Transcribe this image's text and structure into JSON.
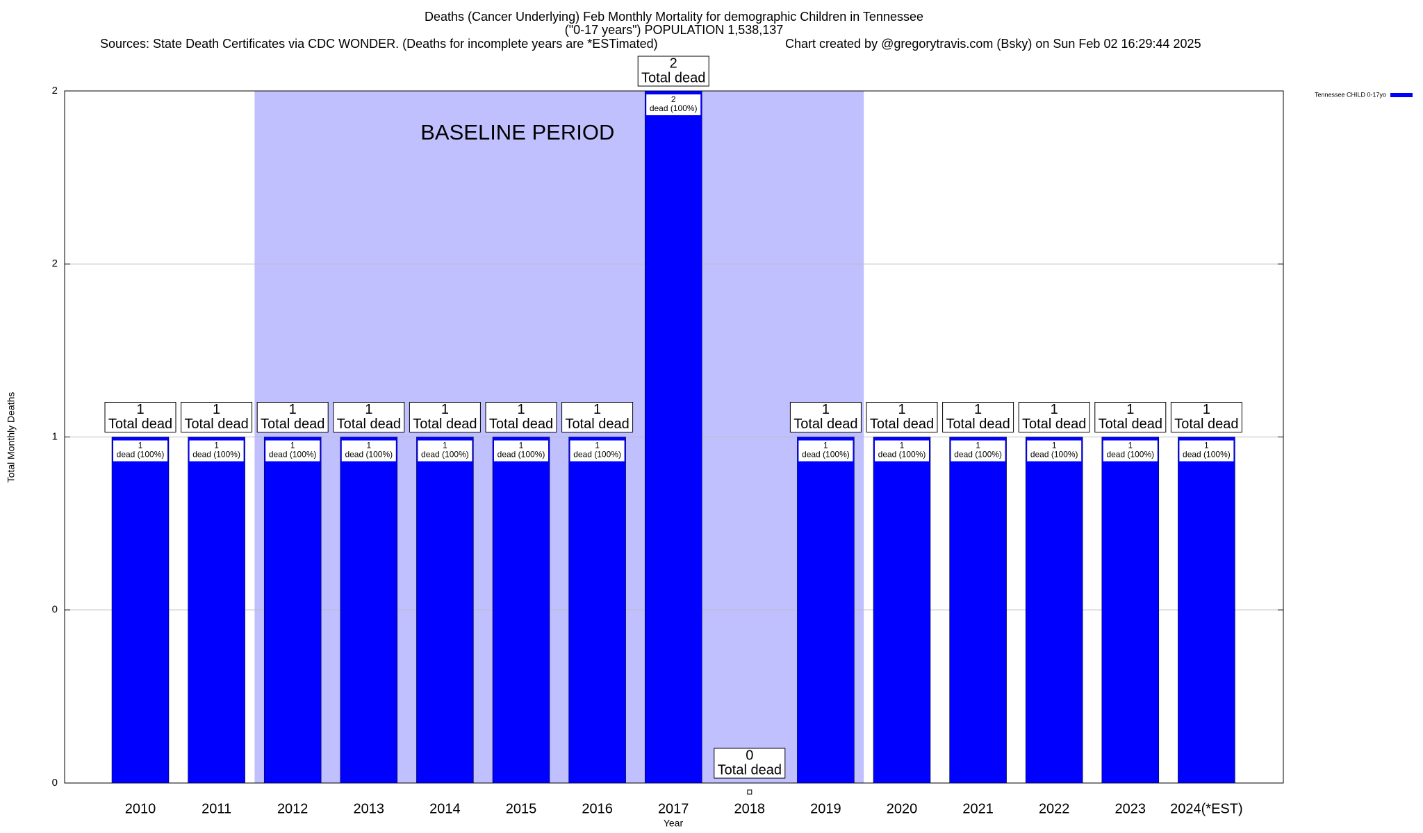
{
  "chart_data": {
    "type": "bar",
    "title": "Deaths (Cancer Underlying) Feb Monthly Mortality for demographic Children in Tennessee",
    "subtitle": "(\"0-17 years\") POPULATION 1,538,137",
    "sources": "Sources: State Death Certificates via CDC WONDER. (Deaths for incomplete years are *ESTimated)",
    "credit": "Chart created by @gregorytravis.com (Bsky) on Sun Feb 02 16:29:44 2025",
    "x_label": "Year",
    "y_label": "Total Monthly Deaths",
    "categories": [
      "2010",
      "2011",
      "2012",
      "2013",
      "2014",
      "2015",
      "2016",
      "2017",
      "2018",
      "2019",
      "2020",
      "2021",
      "2022",
      "2023",
      "2024(*EST)"
    ],
    "series": [
      {
        "name": "Tennessee CHILD 0-17yo",
        "color": "#0000ff",
        "values": [
          1,
          1,
          1,
          1,
          1,
          1,
          1,
          2,
          0,
          1,
          1,
          1,
          1,
          1,
          1
        ]
      }
    ],
    "total_label": "Total dead",
    "segment_label": "dead (100%)",
    "baseline": {
      "label": "BASELINE PERIOD",
      "start": "2012",
      "end": "2019",
      "color": "#c0c0ff"
    },
    "ylim": [
      0,
      2
    ],
    "yticks": [
      0,
      {
        "value": 0.5,
        "label": "0"
      },
      1,
      {
        "value": 1.5,
        "label": "2"
      },
      2
    ],
    "grid": true,
    "legend": "top-right"
  }
}
